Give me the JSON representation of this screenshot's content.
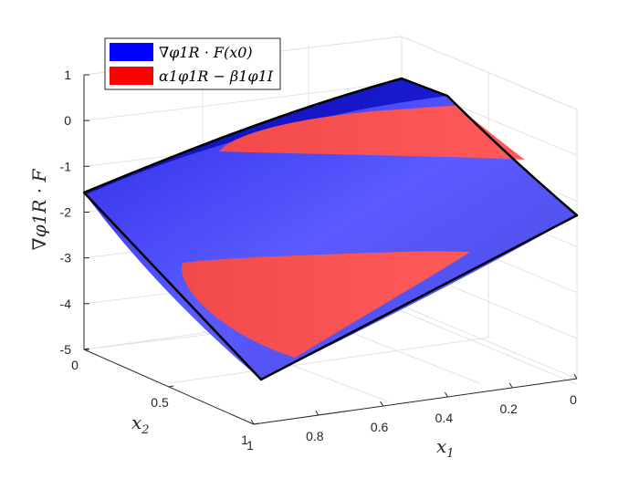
{
  "chart_data": {
    "type": "surface",
    "title": "",
    "xlabel": "x",
    "xlabel_sub": "1",
    "ylabel": "x",
    "ylabel_sub": "2",
    "zlabel": "∇φ1R · F",
    "x_ticks": [
      "0",
      "0.2",
      "0.4",
      "0.6",
      "0.8",
      "1"
    ],
    "y_ticks": [
      "0",
      "0.5",
      "1"
    ],
    "z_ticks": [
      "1",
      "0",
      "-1",
      "-2",
      "-3",
      "-4",
      "-5"
    ],
    "xlim": [
      0,
      1
    ],
    "ylim": [
      0,
      1
    ],
    "zlim": [
      -5,
      1
    ],
    "grid": true,
    "legend_position": "top-left",
    "series": [
      {
        "name": "∇φ1R · F(x0)",
        "color": "#0000ff"
      },
      {
        "name": "α1φ1R − β1φ1I",
        "color": "#ff0000"
      }
    ]
  }
}
